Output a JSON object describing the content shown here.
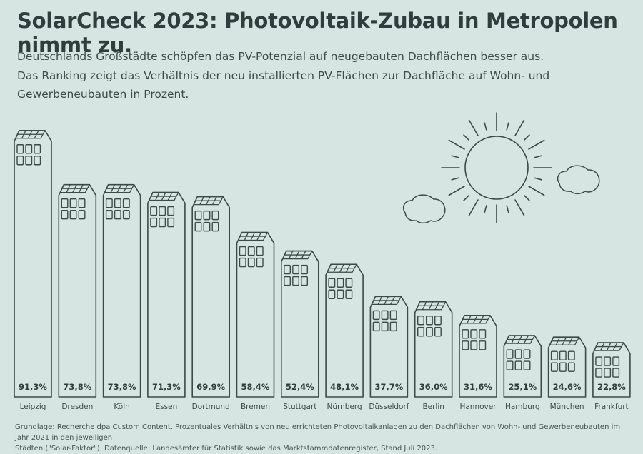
{
  "title": "SolarCheck 2023: Photovoltaik-Zubau in Metropolen nimmt zu.",
  "subtitle_lines": [
    "Deutschlands Großstädte schöpfen das PV-Potenzial auf neugebauten Dachflächen besser aus.",
    "Das Ranking zeigt das Verhältnis der neu installierten PV-Flächen zur Dachfläche auf Wohn- und",
    "Gewerbeneubauten in Prozent."
  ],
  "source_lines": [
    "Grundlage: Recherche dpa Custom Content. Prozentuales Verhältnis von neu errichteten Photovoltaikanlagen zu den Dachflächen von Wohn- und Gewerbeneubauten im Jahr 2021 in den jeweiligen",
    "Städten (\"Solar-Faktor\"). Datenquelle: Landesämter für Statistik sowie das Marktstammdatenregister, Stand Juli 2023."
  ],
  "colors": {
    "background": "#d6e5e2",
    "line": "#3b4a47"
  },
  "chart_data": {
    "type": "bar",
    "style": "pictorial buildings with solar-panel roofs",
    "categories": [
      "Leipzig",
      "Dresden",
      "Köln",
      "Essen",
      "Dortmund",
      "Bremen",
      "Stuttgart",
      "Nürnberg",
      "Düsseldorf",
      "Berlin",
      "Hannover",
      "Hamburg",
      "München",
      "Frankfurt"
    ],
    "values": [
      91.3,
      73.8,
      73.8,
      71.3,
      69.9,
      58.4,
      52.4,
      48.1,
      37.7,
      36.0,
      31.6,
      25.1,
      24.6,
      22.8
    ],
    "labels": [
      "91,3%",
      "73,8%",
      "73,8%",
      "71,3%",
      "69,9%",
      "58,4%",
      "52,4%",
      "48,1%",
      "37,7%",
      "36,0%",
      "31,6%",
      "25,1%",
      "24,6%",
      "22,8%"
    ],
    "unit": "%",
    "grid": false,
    "decorations": [
      "sun-icon",
      "cloud-icon",
      "cloud-icon"
    ]
  }
}
